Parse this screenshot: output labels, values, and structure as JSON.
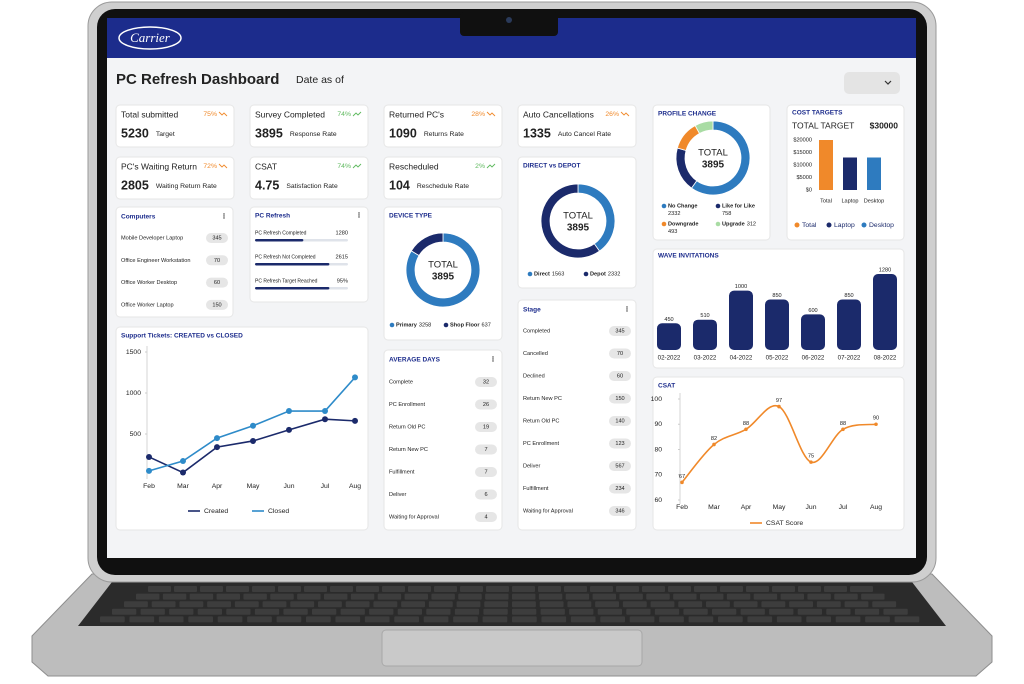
{
  "logo": "Carrier",
  "header": {
    "title": "PC Refresh Dashboard",
    "date_label": "Date as of"
  },
  "kpis": [
    {
      "label": "Total submitted",
      "change": "75%",
      "value": 5230,
      "caption": "Target",
      "color": "#f0892a",
      "trend": "down"
    },
    {
      "label": "Survey Completed",
      "change": "74%",
      "value": 3895,
      "caption": "Response Rate",
      "color": "#5cb85c",
      "trend": "up"
    },
    {
      "label": "Returned PC's",
      "change": "28%",
      "value": 1090,
      "caption": "Returns Rate",
      "color": "#f0892a",
      "trend": "down"
    },
    {
      "label": "Auto Cancellations",
      "change": "26%",
      "value": 1335,
      "caption": "Auto Cancel Rate",
      "color": "#f0892a",
      "trend": "down"
    },
    {
      "label": "PC's Waiting Return",
      "change": "72%",
      "value": 2805,
      "caption": "Waiting Return Rate",
      "color": "#f0892a",
      "trend": "down"
    },
    {
      "label": "CSAT",
      "change": "74%",
      "value": 4.75,
      "caption": "Satisfaction Rate",
      "color": "#5cb85c",
      "trend": "up"
    },
    {
      "label": "Rescheduled",
      "change": "2%",
      "value": 104,
      "caption": "Reschedule Rate",
      "color": "#5cb85c",
      "trend": "up"
    }
  ],
  "computers": {
    "title": "Computers",
    "rows": [
      [
        "Mobile Developer Laptop",
        345
      ],
      [
        "Office Engineer Workstation",
        70
      ],
      [
        "Office Worker Desktop",
        60
      ],
      [
        "Office Worker Laptop",
        150
      ]
    ]
  },
  "pc_refresh": {
    "title": "PC Refresh",
    "rows": [
      [
        "PC Refresh Completed",
        1280
      ],
      [
        "PC Refresh Not Completed",
        2615
      ],
      [
        "PC Refresh Target Reached",
        "95%"
      ]
    ]
  },
  "average_days": {
    "title": "AVERAGE DAYS",
    "rows": [
      [
        "Complete",
        32
      ],
      [
        "PC Enrollment",
        26
      ],
      [
        "Return Old PC",
        19
      ],
      [
        "Return New PC",
        7
      ],
      [
        "Fulfillment",
        7
      ],
      [
        "Deliver",
        6
      ],
      [
        "Waiting for Approval",
        4
      ]
    ]
  },
  "stage": {
    "title": "Stage",
    "rows": [
      [
        "Completed",
        345
      ],
      [
        "Cancelled",
        70
      ],
      [
        "Declined",
        60
      ],
      [
        "Return New PC",
        150
      ],
      [
        "Return Old PC",
        140
      ],
      [
        "PC Enrollment",
        123
      ],
      [
        "Deliver",
        567
      ],
      [
        "Fulfillment",
        234
      ],
      [
        "Waiting for Approval",
        346
      ]
    ]
  },
  "profile_change": {
    "type": "donut",
    "title": "PROFILE CHANGE",
    "center_label": "TOTAL",
    "total": 3895,
    "segments": [
      {
        "name": "No Change",
        "value": 2332,
        "color": "#2e7bbf"
      },
      {
        "name": "Like for Like",
        "value": 758,
        "color": "#1b2a6b"
      },
      {
        "name": "Downgrade",
        "value": 493,
        "color": "#f0892a"
      },
      {
        "name": "Upgrade",
        "value": 312,
        "color": "#a9dca4"
      }
    ]
  },
  "direct_vs_depot": {
    "type": "donut",
    "title": "DIRECT vs DEPOT",
    "center_label": "TOTAL",
    "total": 3895,
    "segments": [
      {
        "name": "Direct",
        "value": 1563,
        "color": "#2e7bbf"
      },
      {
        "name": "Depot",
        "value": 2332,
        "color": "#1b2a6b"
      }
    ]
  },
  "device_type": {
    "type": "donut",
    "title": "DEVICE TYPE",
    "center_label": "TOTAL",
    "total": 3895,
    "segments": [
      {
        "name": "Primary",
        "value": 3258,
        "color": "#2e7bbf"
      },
      {
        "name": "Shop Floor",
        "value": 637,
        "color": "#1b2a6b"
      }
    ]
  },
  "cost_targets": {
    "type": "bar",
    "title": "COST TARGETS",
    "subtitle": "TOTAL TARGET",
    "total": "$30000",
    "categories": [
      "Total",
      "Laptop",
      "Desktop"
    ],
    "values": [
      20000,
      13000,
      13000
    ],
    "colors": [
      "#f0892a",
      "#1b2a6b",
      "#2e7bbf"
    ],
    "ylim": [
      0,
      20000
    ],
    "yticks": [
      {
        "value": 0,
        "label": "$0"
      },
      {
        "value": 5000,
        "label": "$5000"
      },
      {
        "value": 10000,
        "label": "$10000"
      },
      {
        "value": 15000,
        "label": "$15000"
      },
      {
        "value": 20000,
        "label": "$20000"
      }
    ]
  },
  "wave_invitations": {
    "type": "bar",
    "title": "WAVE INVITATIONS",
    "color": "#1b2a6b",
    "categories": [
      "02-2022",
      "03-2022",
      "04-2022",
      "05-2022",
      "06-2022",
      "07-2022",
      "08-2022"
    ],
    "values": [
      450,
      510,
      1000,
      850,
      600,
      850,
      1280
    ]
  },
  "support_tickets": {
    "type": "line",
    "title": "Support Tickets: CREATED vs CLOSED",
    "categories": [
      "Feb",
      "Mar",
      "Apr",
      "May",
      "Jun",
      "Jul",
      "Aug"
    ],
    "ylim": [
      0,
      1500
    ],
    "yticks": [
      500,
      1000,
      1500
    ],
    "series": [
      {
        "name": "Created",
        "color": "#1b2a6b",
        "values": [
          220,
          30,
          340,
          415,
          550,
          680,
          660
        ]
      },
      {
        "name": "Closed",
        "color": "#2e8bc9",
        "values": [
          50,
          170,
          450,
          600,
          780,
          780,
          1190
        ]
      }
    ]
  },
  "csat": {
    "type": "line",
    "title": "CSAT",
    "categories": [
      "Feb",
      "Mar",
      "Apr",
      "May",
      "Jun",
      "Jul",
      "Aug"
    ],
    "ylim": [
      60,
      100
    ],
    "yticks": [
      60,
      70,
      80,
      90,
      100
    ],
    "series": [
      {
        "name": "CSAT Score",
        "color": "#f0892a",
        "values": [
          67,
          82,
          88,
          97,
          75,
          88,
          90
        ]
      }
    ]
  }
}
